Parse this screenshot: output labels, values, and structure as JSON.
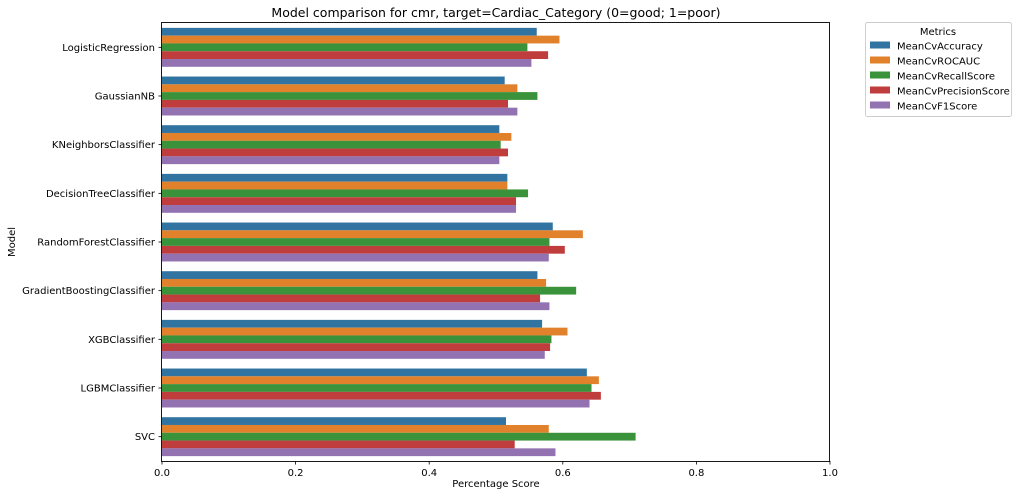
{
  "chart_data": {
    "type": "bar",
    "orientation": "horizontal",
    "title": "Model comparison for cmr, target=Cardiac_Category (0=good; 1=poor)",
    "xlabel": "Percentage Score",
    "ylabel": "Model",
    "xlim": [
      0,
      1.0
    ],
    "xticks": [
      "0.0",
      "0.2",
      "0.4",
      "0.6",
      "0.8",
      "1.0"
    ],
    "grid": false,
    "legend": {
      "title": "Metrics",
      "placement": "outside-top-right"
    },
    "categories": [
      "LogisticRegression",
      "GaussianNB",
      "KNeighborsClassifier",
      "DecisionTreeClassifier",
      "RandomForestClassifier",
      "GradientBoostingClassifier",
      "XGBClassifier",
      "LGBMClassifier",
      "SVC"
    ],
    "series": [
      {
        "name": "MeanCvAccuracy",
        "color": "#3274a1",
        "values": [
          0.561,
          0.513,
          0.505,
          0.517,
          0.585,
          0.562,
          0.569,
          0.636,
          0.515
        ]
      },
      {
        "name": "MeanCvROCAUC",
        "color": "#e1812c",
        "values": [
          0.595,
          0.532,
          0.523,
          0.517,
          0.63,
          0.575,
          0.607,
          0.654,
          0.579
        ]
      },
      {
        "name": "MeanCvRecallScore",
        "color": "#3a923a",
        "values": [
          0.547,
          0.562,
          0.507,
          0.548,
          0.58,
          0.62,
          0.583,
          0.643,
          0.709
        ]
      },
      {
        "name": "MeanCvPrecisionScore",
        "color": "#c03d3e",
        "values": [
          0.578,
          0.518,
          0.518,
          0.53,
          0.603,
          0.566,
          0.581,
          0.657,
          0.528
        ]
      },
      {
        "name": "MeanCvF1Score",
        "color": "#9372b2",
        "values": [
          0.553,
          0.532,
          0.505,
          0.53,
          0.579,
          0.58,
          0.573,
          0.64,
          0.589
        ]
      }
    ]
  }
}
